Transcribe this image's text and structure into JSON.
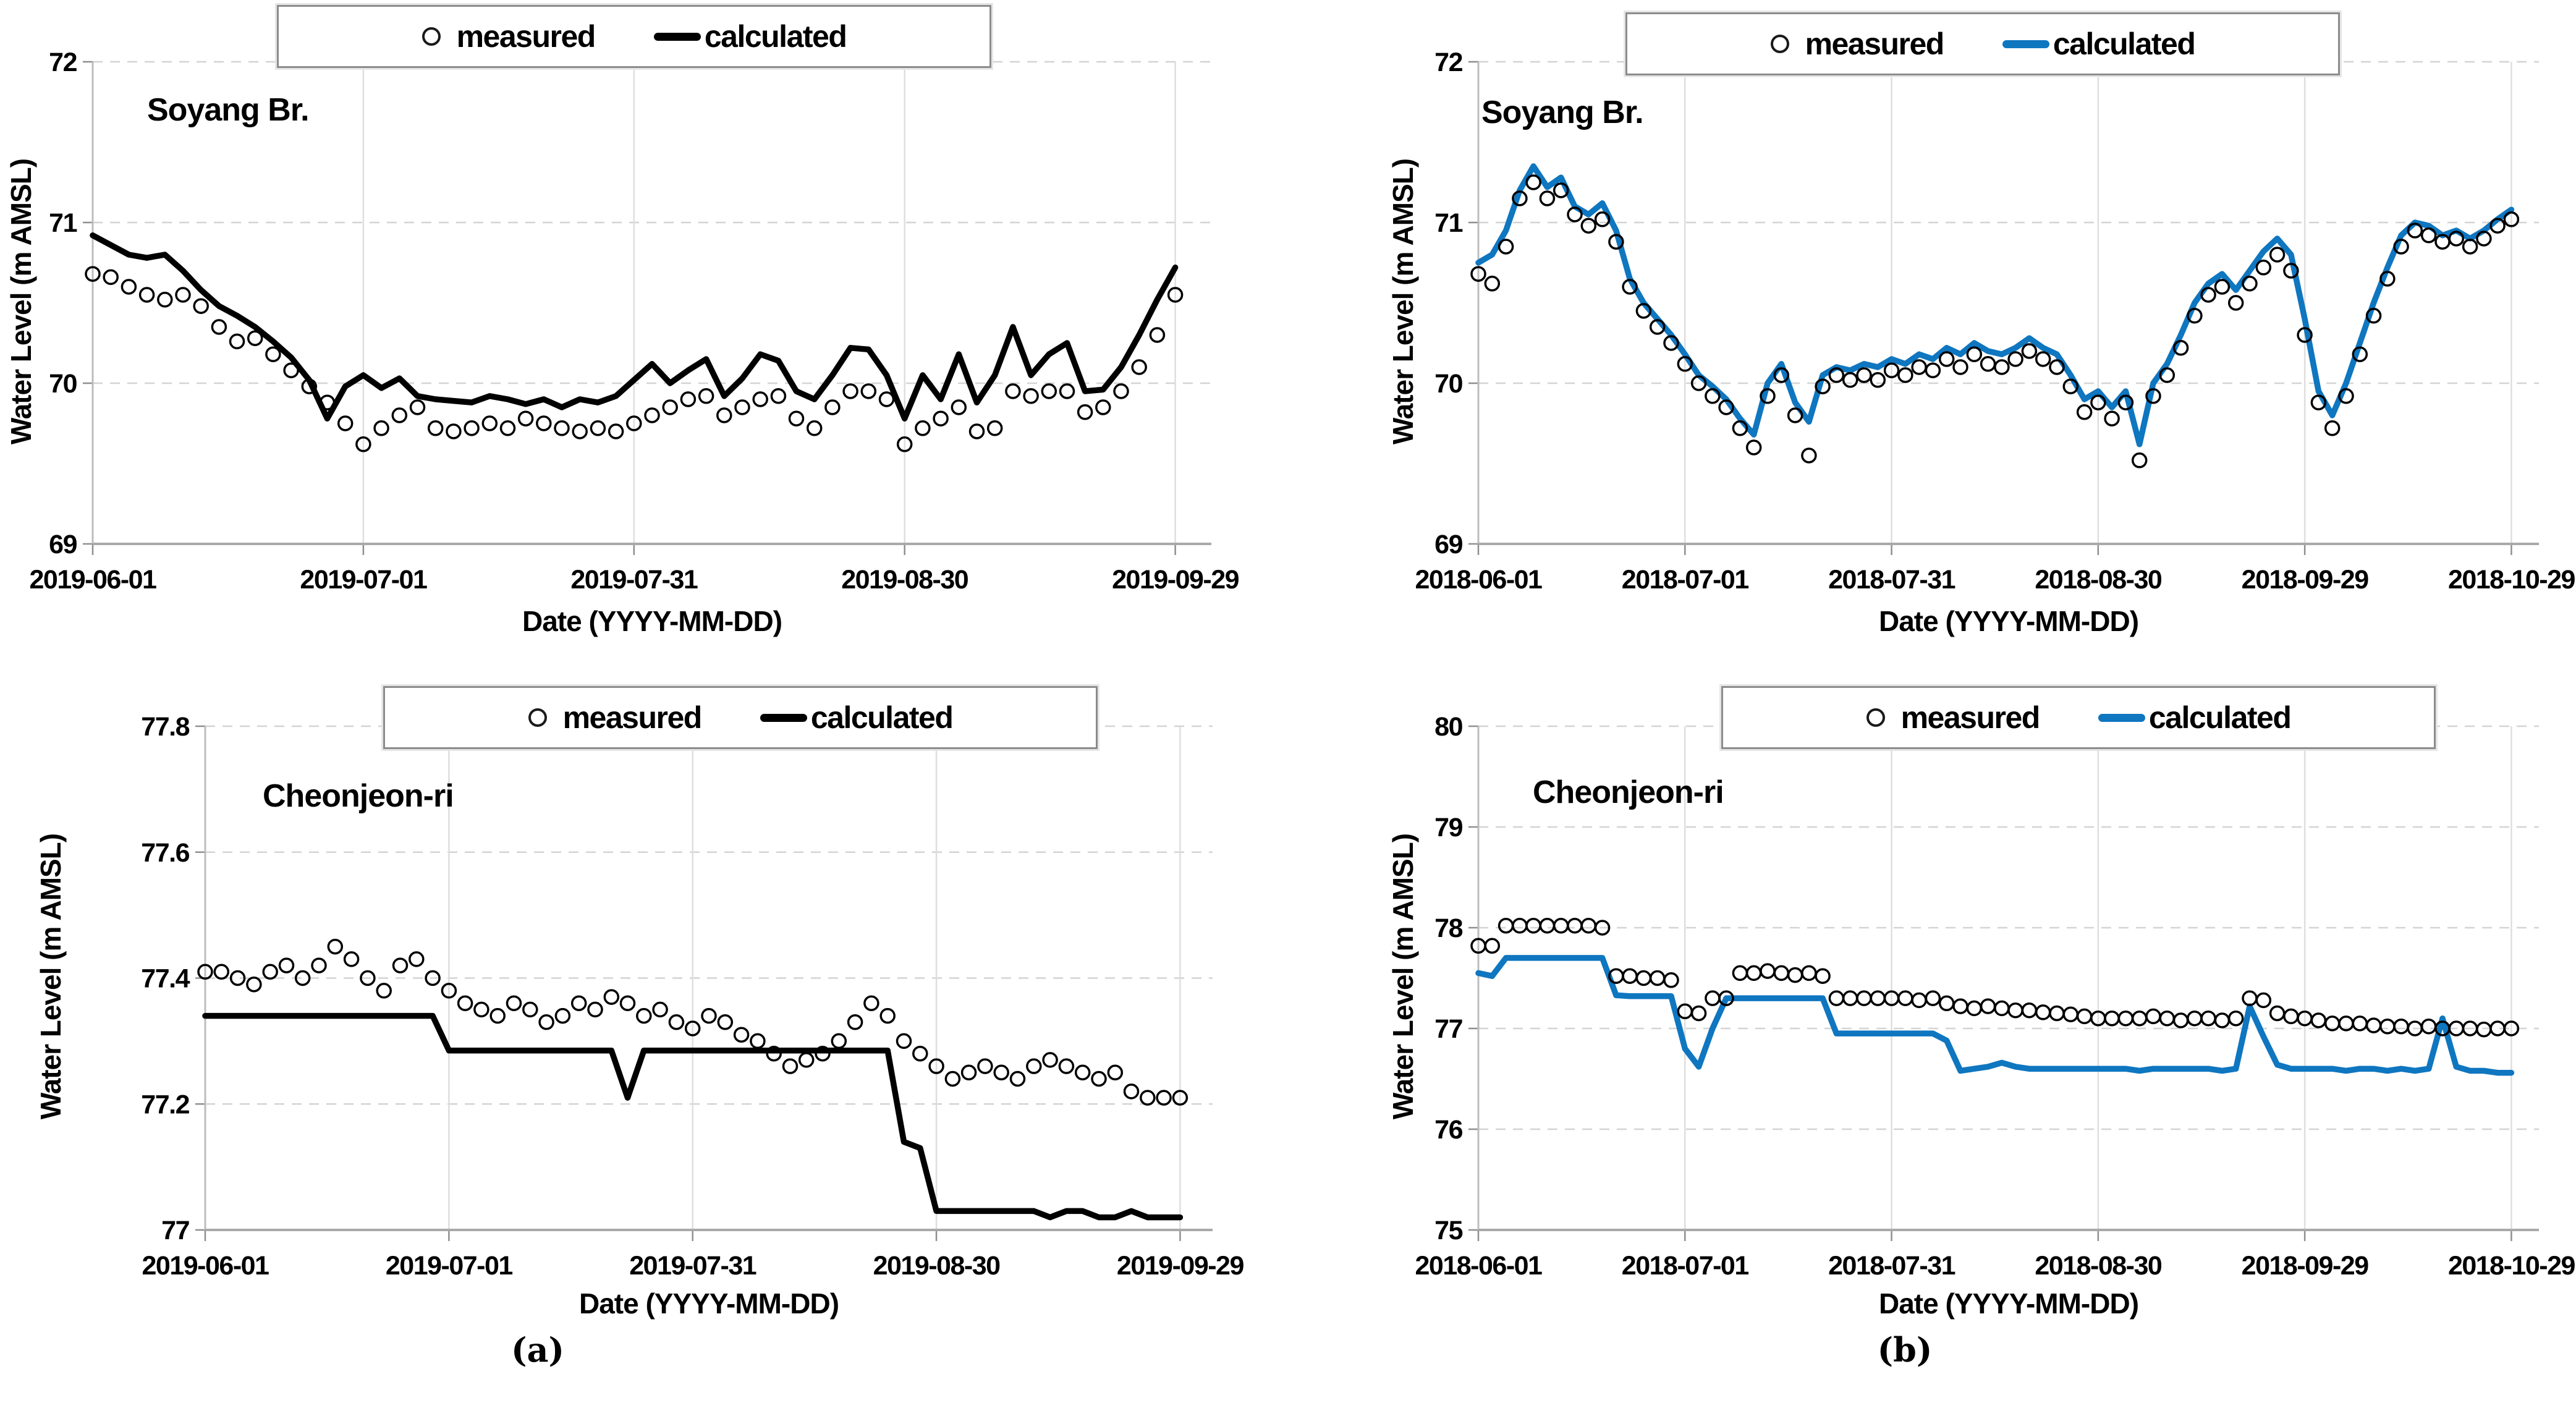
{
  "figure": {
    "captions": {
      "a": "(a)",
      "b": "(b)"
    }
  },
  "chart_data": [
    {
      "type": "line+scatter",
      "station_label": "Soyang Br.",
      "xlabel": "Date (YYYY-MM-DD)",
      "ylabel": "Water Level (m AMSL)",
      "legend": {
        "measured": "measured",
        "calculated": "calculated"
      },
      "calculated_color": "#000000",
      "measured_color": "#000000",
      "ylim": [
        69,
        72
      ],
      "yticks": [
        72,
        71,
        70,
        69
      ],
      "grid": true,
      "legend_position": "top-center",
      "xtick_days": [
        0,
        30,
        60,
        90,
        120
      ],
      "xtick_labels": [
        "2019-06-01",
        "2019-07-01",
        "2019-07-31",
        "2019-08-30",
        "2019-09-29"
      ],
      "x_step_days": 2,
      "x_axis_max_days": 124,
      "series": [
        {
          "name": "measured",
          "values": [
            70.68,
            70.66,
            70.6,
            70.55,
            70.52,
            70.55,
            70.48,
            70.35,
            70.26,
            70.28,
            70.18,
            70.08,
            69.98,
            69.88,
            69.75,
            69.62,
            69.72,
            69.8,
            69.85,
            69.72,
            69.7,
            69.72,
            69.75,
            69.72,
            69.78,
            69.75,
            69.72,
            69.7,
            69.72,
            69.7,
            69.75,
            69.8,
            69.85,
            69.9,
            69.92,
            69.8,
            69.85,
            69.9,
            69.92,
            69.78,
            69.72,
            69.85,
            69.95,
            69.95,
            69.9,
            69.62,
            69.72,
            69.78,
            69.85,
            69.7,
            69.72,
            69.95,
            69.92,
            69.95,
            69.95,
            69.82,
            69.85,
            69.95,
            70.1,
            70.3,
            70.55
          ]
        },
        {
          "name": "calculated",
          "values": [
            70.92,
            70.86,
            70.8,
            70.78,
            70.8,
            70.7,
            70.58,
            70.48,
            70.42,
            70.35,
            70.26,
            70.16,
            70.02,
            69.78,
            69.98,
            70.05,
            69.97,
            70.03,
            69.92,
            69.9,
            69.89,
            69.88,
            69.92,
            69.9,
            69.87,
            69.9,
            69.85,
            69.9,
            69.88,
            69.92,
            70.02,
            70.12,
            70.0,
            70.08,
            70.15,
            69.92,
            70.03,
            70.18,
            70.14,
            69.95,
            69.9,
            70.05,
            70.22,
            70.21,
            70.05,
            69.78,
            70.05,
            69.9,
            70.18,
            69.88,
            70.05,
            70.35,
            70.05,
            70.18,
            70.25,
            69.95,
            69.96,
            70.1,
            70.3,
            70.52,
            70.72
          ]
        }
      ]
    },
    {
      "type": "line+scatter",
      "station_label": "Soyang Br.",
      "xlabel": "Date (YYYY-MM-DD)",
      "ylabel": "Water Level (m AMSL)",
      "legend": {
        "measured": "measured",
        "calculated": "calculated"
      },
      "calculated_color": "#0F76C0",
      "measured_color": "#000000",
      "ylim": [
        69,
        72
      ],
      "yticks": [
        72,
        71,
        70,
        69
      ],
      "grid": true,
      "legend_position": "top-center",
      "xtick_days": [
        0,
        30,
        60,
        90,
        120,
        150
      ],
      "xtick_labels": [
        "2018-06-01",
        "2018-07-01",
        "2018-07-31",
        "2018-08-30",
        "2018-09-29",
        "2018-10-29"
      ],
      "x_step_days": 2,
      "x_axis_max_days": 154,
      "series": [
        {
          "name": "measured",
          "values": [
            70.68,
            70.62,
            70.85,
            71.15,
            71.25,
            71.15,
            71.2,
            71.05,
            70.98,
            71.02,
            70.88,
            70.6,
            70.45,
            70.35,
            70.25,
            70.12,
            70.0,
            69.92,
            69.85,
            69.72,
            69.6,
            69.92,
            70.05,
            69.8,
            69.55,
            69.98,
            70.05,
            70.02,
            70.05,
            70.02,
            70.08,
            70.05,
            70.1,
            70.08,
            70.15,
            70.1,
            70.18,
            70.12,
            70.1,
            70.15,
            70.2,
            70.15,
            70.1,
            69.98,
            69.82,
            69.88,
            69.78,
            69.88,
            69.52,
            69.92,
            70.05,
            70.22,
            70.42,
            70.55,
            70.6,
            70.5,
            70.62,
            70.72,
            70.8,
            70.7,
            70.3,
            69.88,
            69.72,
            69.92,
            70.18,
            70.42,
            70.65,
            70.85,
            70.95,
            70.92,
            70.88,
            70.9,
            70.85,
            70.9,
            70.98,
            71.02
          ]
        },
        {
          "name": "calculated",
          "values": [
            70.75,
            70.8,
            70.95,
            71.2,
            71.35,
            71.22,
            71.28,
            71.1,
            71.05,
            71.12,
            70.95,
            70.65,
            70.5,
            70.4,
            70.3,
            70.18,
            70.05,
            69.98,
            69.9,
            69.78,
            69.68,
            70.0,
            70.12,
            69.88,
            69.76,
            70.05,
            70.1,
            70.08,
            70.12,
            70.1,
            70.15,
            70.12,
            70.18,
            70.15,
            70.22,
            70.18,
            70.25,
            70.2,
            70.18,
            70.22,
            70.28,
            70.22,
            70.18,
            70.05,
            69.9,
            69.95,
            69.85,
            69.95,
            69.62,
            70.0,
            70.12,
            70.3,
            70.5,
            70.62,
            70.68,
            70.58,
            70.7,
            70.82,
            70.9,
            70.8,
            70.4,
            69.95,
            69.8,
            70.0,
            70.25,
            70.5,
            70.72,
            70.92,
            71.0,
            70.98,
            70.92,
            70.95,
            70.9,
            70.95,
            71.02,
            71.08
          ]
        }
      ]
    },
    {
      "type": "line+scatter",
      "station_label": "Cheonjeon-ri",
      "xlabel": "Date (YYYY-MM-DD)",
      "ylabel": "Water Level (m AMSL)",
      "legend": {
        "measured": "measured",
        "calculated": "calculated"
      },
      "calculated_color": "#000000",
      "measured_color": "#000000",
      "ylim": [
        77,
        77.8
      ],
      "yticks": [
        77.8,
        77.6,
        77.4,
        77.2,
        77
      ],
      "grid": true,
      "legend_position": "top-center",
      "xtick_days": [
        0,
        30,
        60,
        90,
        120
      ],
      "xtick_labels": [
        "2019-06-01",
        "2019-07-01",
        "2019-07-31",
        "2019-08-30",
        "2019-09-29"
      ],
      "x_step_days": 2,
      "x_axis_max_days": 124,
      "series": [
        {
          "name": "measured",
          "values": [
            77.41,
            77.41,
            77.4,
            77.39,
            77.41,
            77.42,
            77.4,
            77.42,
            77.45,
            77.43,
            77.4,
            77.38,
            77.42,
            77.43,
            77.4,
            77.38,
            77.36,
            77.35,
            77.34,
            77.36,
            77.35,
            77.33,
            77.34,
            77.36,
            77.35,
            77.37,
            77.36,
            77.34,
            77.35,
            77.33,
            77.32,
            77.34,
            77.33,
            77.31,
            77.3,
            77.28,
            77.26,
            77.27,
            77.28,
            77.3,
            77.33,
            77.36,
            77.34,
            77.3,
            77.28,
            77.26,
            77.24,
            77.25,
            77.26,
            77.25,
            77.24,
            77.26,
            77.27,
            77.26,
            77.25,
            77.24,
            77.25,
            77.22,
            77.21,
            77.21,
            77.21
          ]
        },
        {
          "name": "calculated",
          "values": [
            77.34,
            77.34,
            77.34,
            77.34,
            77.34,
            77.34,
            77.34,
            77.34,
            77.34,
            77.34,
            77.34,
            77.34,
            77.34,
            77.34,
            77.34,
            77.285,
            77.285,
            77.285,
            77.285,
            77.285,
            77.285,
            77.285,
            77.285,
            77.285,
            77.285,
            77.285,
            77.21,
            77.285,
            77.285,
            77.285,
            77.285,
            77.285,
            77.285,
            77.285,
            77.285,
            77.285,
            77.285,
            77.285,
            77.285,
            77.285,
            77.285,
            77.285,
            77.285,
            77.14,
            77.13,
            77.03,
            77.03,
            77.03,
            77.03,
            77.03,
            77.03,
            77.03,
            77.02,
            77.03,
            77.03,
            77.02,
            77.02,
            77.03,
            77.02,
            77.02,
            77.02
          ]
        }
      ]
    },
    {
      "type": "line+scatter",
      "station_label": "Cheonjeon-ri",
      "xlabel": "Date (YYYY-MM-DD)",
      "ylabel": "Water Level (m AMSL)",
      "legend": {
        "measured": "measured",
        "calculated": "calculated"
      },
      "calculated_color": "#0F76C0",
      "measured_color": "#000000",
      "ylim": [
        75,
        80
      ],
      "yticks": [
        80,
        79,
        78,
        77,
        76,
        75
      ],
      "grid": true,
      "legend_position": "top-center",
      "xtick_days": [
        0,
        30,
        60,
        90,
        120,
        150
      ],
      "xtick_labels": [
        "2018-06-01",
        "2018-07-01",
        "2018-07-31",
        "2018-08-30",
        "2018-09-29",
        "2018-10-29"
      ],
      "x_step_days": 2,
      "x_axis_max_days": 154,
      "series": [
        {
          "name": "measured",
          "values": [
            77.82,
            77.82,
            78.02,
            78.02,
            78.02,
            78.02,
            78.02,
            78.02,
            78.02,
            78.0,
            77.52,
            77.52,
            77.5,
            77.5,
            77.48,
            77.17,
            77.15,
            77.3,
            77.3,
            77.55,
            77.55,
            77.57,
            77.55,
            77.53,
            77.55,
            77.52,
            77.3,
            77.3,
            77.3,
            77.3,
            77.3,
            77.3,
            77.28,
            77.3,
            77.25,
            77.22,
            77.2,
            77.22,
            77.2,
            77.18,
            77.18,
            77.16,
            77.15,
            77.14,
            77.12,
            77.1,
            77.1,
            77.1,
            77.1,
            77.12,
            77.1,
            77.08,
            77.1,
            77.1,
            77.08,
            77.1,
            77.3,
            77.28,
            77.15,
            77.12,
            77.1,
            77.08,
            77.05,
            77.05,
            77.05,
            77.03,
            77.02,
            77.02,
            77.0,
            77.02,
            77.0,
            77.0,
            77.0,
            76.99,
            77.0,
            77.0
          ]
        },
        {
          "name": "calculated",
          "values": [
            77.55,
            77.52,
            77.7,
            77.7,
            77.7,
            77.7,
            77.7,
            77.7,
            77.7,
            77.7,
            77.33,
            77.32,
            77.32,
            77.32,
            77.32,
            76.8,
            76.62,
            77.0,
            77.3,
            77.3,
            77.3,
            77.3,
            77.3,
            77.3,
            77.3,
            77.3,
            76.95,
            76.95,
            76.95,
            76.95,
            76.95,
            76.95,
            76.95,
            76.95,
            76.88,
            76.58,
            76.6,
            76.62,
            76.66,
            76.62,
            76.6,
            76.6,
            76.6,
            76.6,
            76.6,
            76.6,
            76.6,
            76.6,
            76.58,
            76.6,
            76.6,
            76.6,
            76.6,
            76.6,
            76.58,
            76.6,
            77.22,
            76.92,
            76.64,
            76.6,
            76.6,
            76.6,
            76.6,
            76.58,
            76.6,
            76.6,
            76.58,
            76.6,
            76.58,
            76.6,
            77.1,
            76.62,
            76.58,
            76.58,
            76.56,
            76.56
          ]
        }
      ]
    }
  ]
}
